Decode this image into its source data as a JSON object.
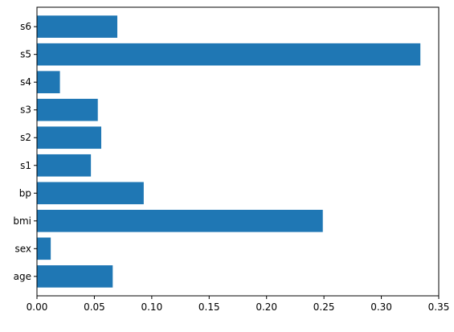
{
  "chart_data": {
    "type": "bar",
    "orientation": "horizontal",
    "categories": [
      "age",
      "sex",
      "bmi",
      "bp",
      "s1",
      "s2",
      "s3",
      "s4",
      "s5",
      "s6"
    ],
    "values": [
      0.066,
      0.012,
      0.249,
      0.093,
      0.047,
      0.056,
      0.053,
      0.02,
      0.334,
      0.07
    ],
    "xlim": [
      0,
      0.35
    ],
    "xticks": [
      "0.00",
      "0.05",
      "0.10",
      "0.15",
      "0.20",
      "0.25",
      "0.30",
      "0.35"
    ],
    "title": "",
    "xlabel": "",
    "ylabel": "",
    "grid": false,
    "bar_color": "#1f77b4"
  }
}
